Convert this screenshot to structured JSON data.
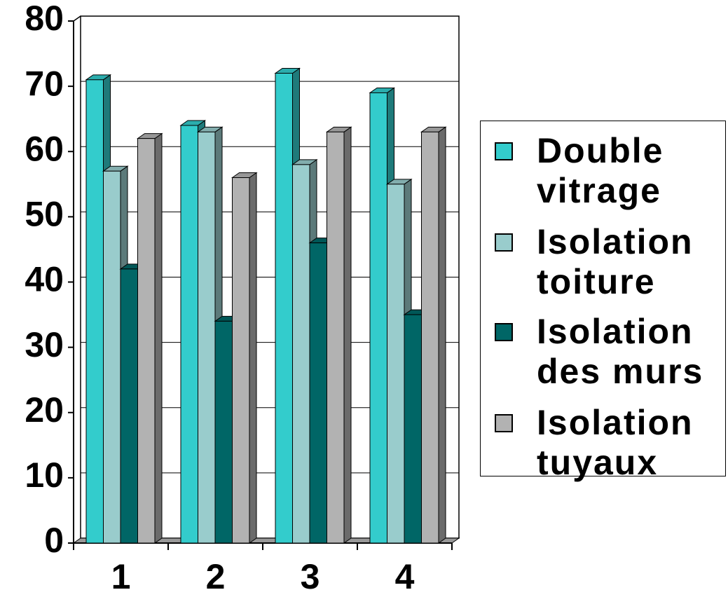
{
  "chart_data": {
    "type": "bar",
    "categories": [
      "1",
      "2",
      "3",
      "4"
    ],
    "series": [
      {
        "name": "Double vitrage",
        "color": "#33cccc",
        "values": [
          71,
          64,
          72,
          69
        ]
      },
      {
        "name": "Isolation toiture",
        "color": "#99cccc",
        "values": [
          57,
          63,
          58,
          55
        ]
      },
      {
        "name": "Isolation des murs",
        "color": "#006666",
        "values": [
          42,
          34,
          46,
          35
        ]
      },
      {
        "name": "Isolation tuyaux",
        "color": "#b2b2b2",
        "values": [
          62,
          56,
          63,
          63
        ]
      }
    ],
    "ylim": [
      0,
      80
    ],
    "yticks": [
      0,
      10,
      20,
      30,
      40,
      50,
      60,
      70,
      80
    ],
    "grid": true,
    "legend": "right"
  }
}
